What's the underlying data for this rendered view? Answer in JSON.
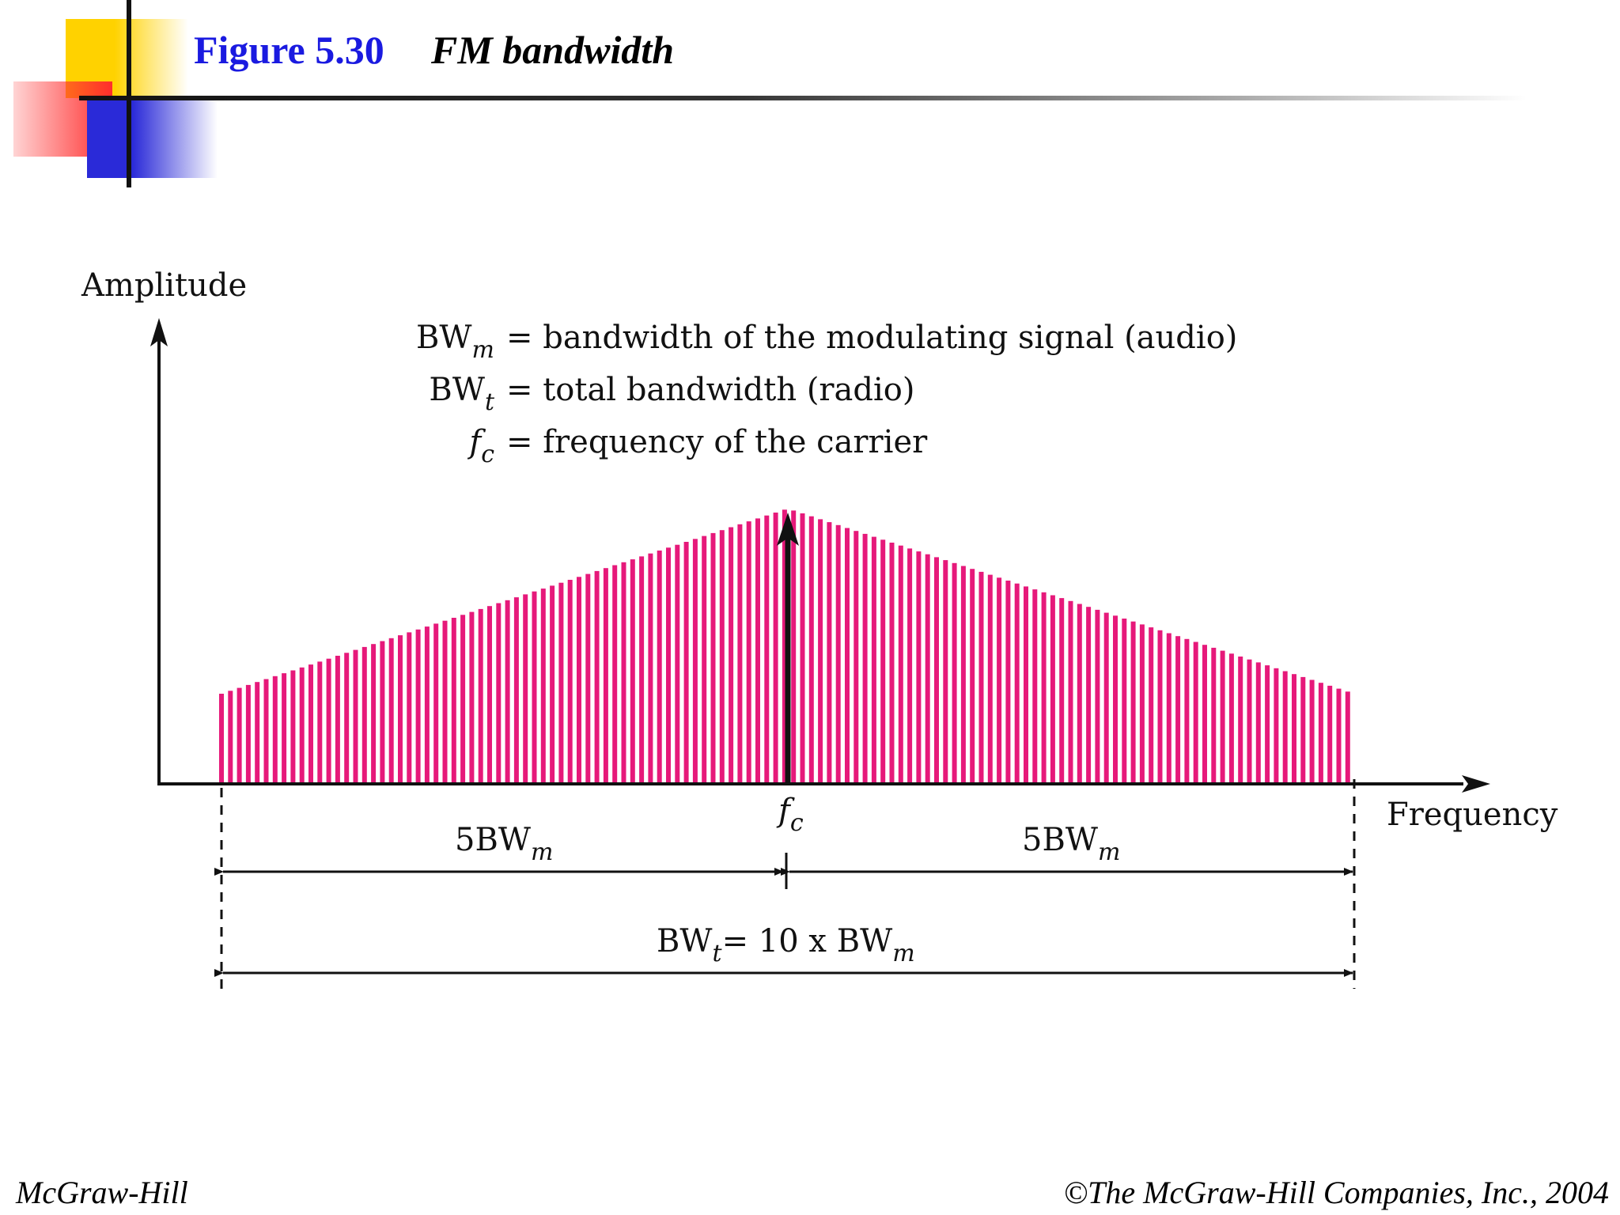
{
  "slide": {
    "figure_number": "Figure 5.30",
    "title": "FM bandwidth",
    "footer_left": "McGraw-Hill",
    "footer_right": "©The McGraw-Hill Companies, Inc., 2004"
  },
  "diagram": {
    "y_axis_label": "Amplitude",
    "x_axis_label": "Frequency",
    "carrier_label": {
      "base": "f",
      "sub": "c"
    },
    "legend": [
      {
        "term_base": "BW",
        "term_sub": "m",
        "definition": "= bandwidth of the modulating signal (audio)"
      },
      {
        "term_base": "BW",
        "term_sub": "t",
        "definition": "= total bandwidth (radio)"
      },
      {
        "term_base": "f",
        "term_sub": "c",
        "definition": "= frequency of the carrier"
      }
    ],
    "left_span": {
      "base": "5BW",
      "sub": "m"
    },
    "right_span": {
      "base": "5BW",
      "sub": "m"
    },
    "total_span": {
      "p1": "BW",
      "s1": "t",
      "p2": "= 10 x BW",
      "s2": "m"
    }
  },
  "colors": {
    "spectrum": "#e6197a",
    "title_number": "#1a1ae0",
    "deco_yellow": "#ffd200",
    "deco_red": "#ff2d2d",
    "deco_blue": "#2a2ad8"
  }
}
